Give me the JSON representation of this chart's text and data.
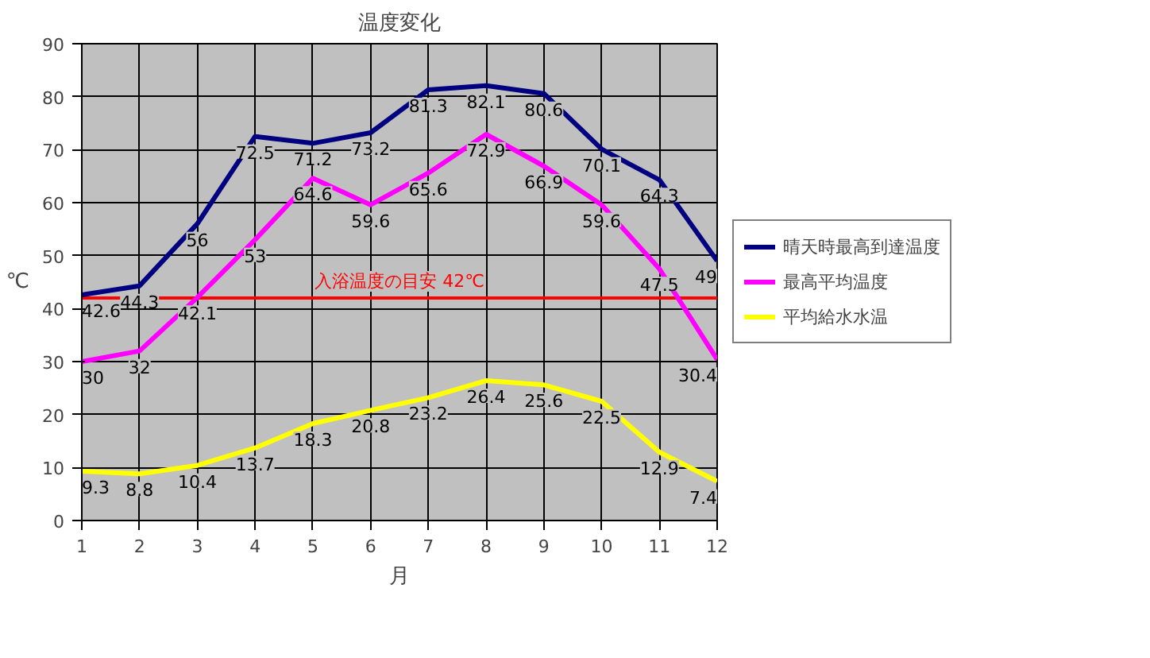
{
  "chart_data": {
    "type": "line",
    "title": "温度変化",
    "xlabel": "月",
    "ylabel": "℃",
    "x": [
      1,
      2,
      3,
      4,
      5,
      6,
      7,
      8,
      9,
      10,
      11,
      12
    ],
    "series": [
      {
        "name": "晴天時最高到達温度",
        "color": "#000080",
        "values": [
          42.6,
          44.3,
          56,
          72.5,
          71.2,
          73.2,
          81.3,
          82.1,
          80.6,
          70.1,
          64.3,
          49
        ]
      },
      {
        "name": "最高平均温度",
        "color": "#ff00ff",
        "values": [
          30,
          32,
          42.1,
          53,
          64.6,
          59.6,
          65.6,
          72.9,
          66.9,
          59.6,
          47.5,
          30.4
        ]
      },
      {
        "name": "平均給水水温",
        "color": "#ffff00",
        "values": [
          9.3,
          8.8,
          10.4,
          13.7,
          18.3,
          20.8,
          23.2,
          26.4,
          25.6,
          22.5,
          12.9,
          7.4
        ]
      }
    ],
    "xlim": [
      1,
      12
    ],
    "ylim": [
      0,
      90
    ],
    "xticks": [
      1,
      2,
      3,
      4,
      5,
      6,
      7,
      8,
      9,
      10,
      11,
      12
    ],
    "yticks": [
      0,
      10,
      20,
      30,
      40,
      50,
      60,
      70,
      80,
      90
    ],
    "ref_lines": [
      {
        "axis": "y",
        "value": 42,
        "label": "入浴温度の目安 42℃",
        "color": "#ff0000"
      }
    ],
    "grid": true,
    "legend": "right",
    "data_labels": true,
    "marker": "none",
    "line_style": "solid"
  }
}
